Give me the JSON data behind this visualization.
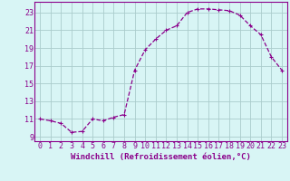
{
  "x": [
    0,
    1,
    2,
    3,
    4,
    5,
    6,
    7,
    8,
    9,
    10,
    11,
    12,
    13,
    14,
    15,
    16,
    17,
    18,
    19,
    20,
    21,
    22,
    23
  ],
  "y": [
    11.0,
    10.8,
    10.5,
    9.5,
    9.6,
    11.0,
    10.8,
    11.2,
    11.5,
    16.5,
    18.8,
    20.0,
    21.0,
    21.5,
    23.0,
    23.4,
    23.4,
    23.3,
    23.2,
    22.7,
    21.5,
    20.5,
    18.0,
    16.5
  ],
  "line_color": "#8B008B",
  "marker": "+",
  "marker_size": 3,
  "marker_lw": 0.8,
  "bg_color": "#d8f5f5",
  "grid_color": "#aacccc",
  "xlabel": "Windchill (Refroidissement éolien,°C)",
  "xlabel_color": "#8B008B",
  "tick_color": "#8B008B",
  "ylabel_ticks": [
    9,
    11,
    13,
    15,
    17,
    19,
    21,
    23
  ],
  "xlabel_ticks": [
    0,
    1,
    2,
    3,
    4,
    5,
    6,
    7,
    8,
    9,
    10,
    11,
    12,
    13,
    14,
    15,
    16,
    17,
    18,
    19,
    20,
    21,
    22,
    23
  ],
  "xlim": [
    -0.5,
    23.5
  ],
  "ylim": [
    8.5,
    24.2
  ],
  "xlabel_fontsize": 6.5,
  "tick_fontsize": 6.0,
  "line_width": 0.9,
  "spine_color": "#8B008B"
}
